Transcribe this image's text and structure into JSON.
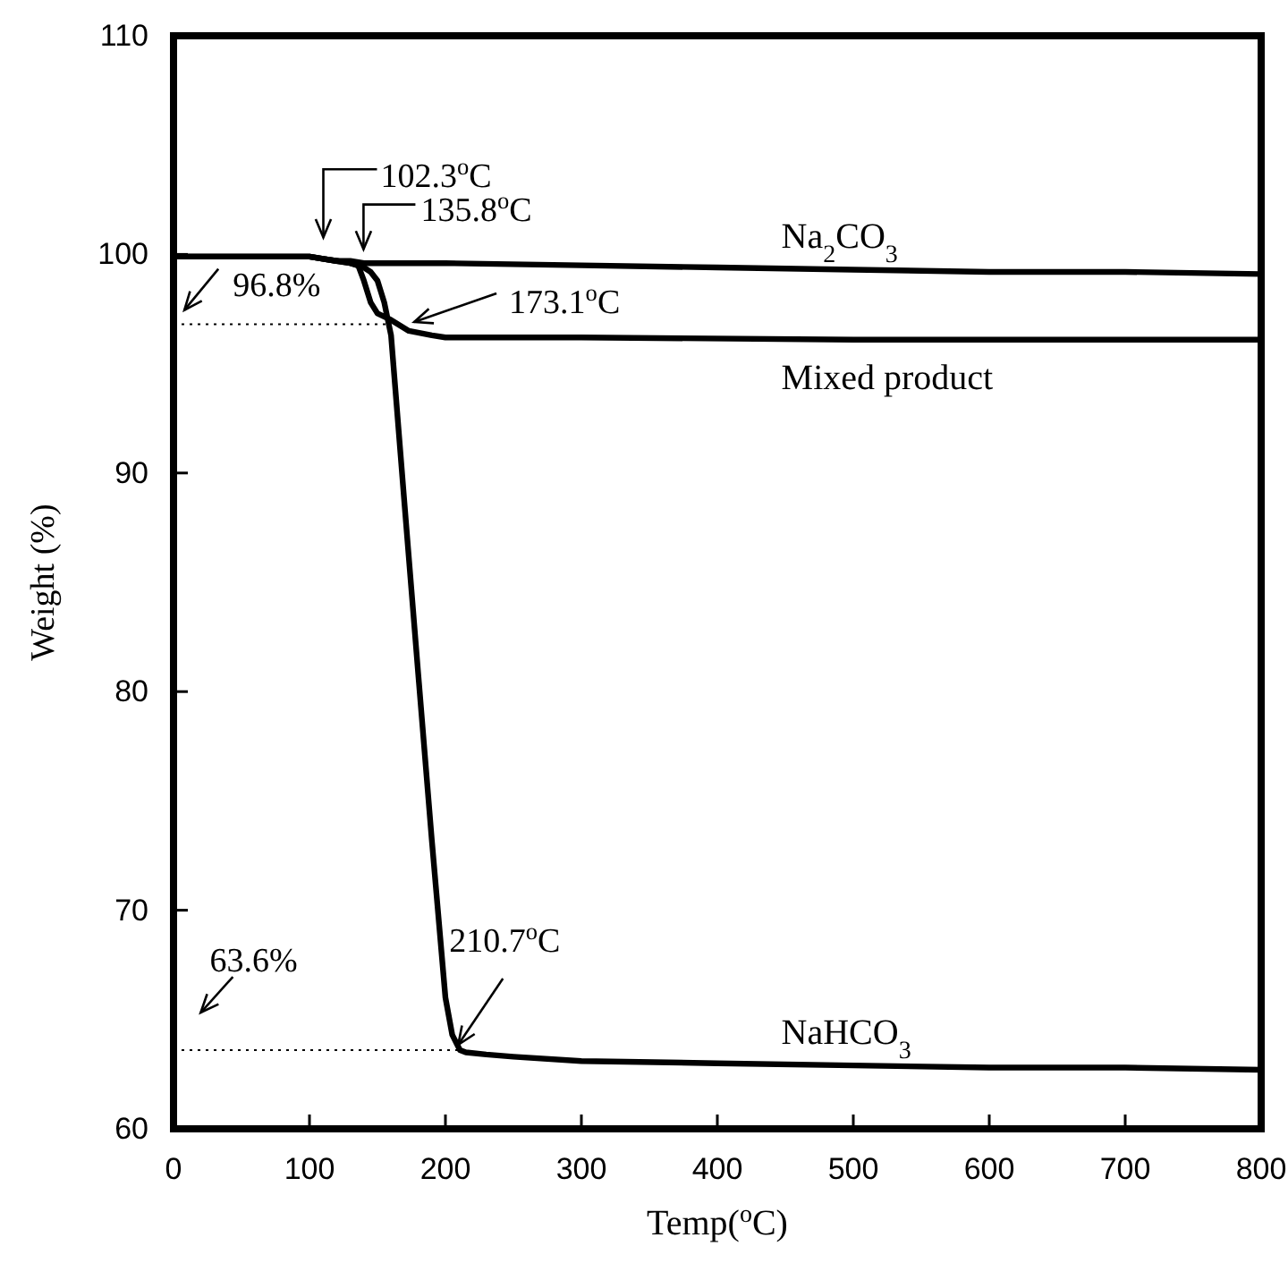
{
  "chart_data": {
    "type": "line",
    "xlabel": "Temp($^{o}$C)",
    "ylabel": "Weight (%)",
    "xlim": [
      0,
      800
    ],
    "xticks": [
      0,
      100,
      200,
      300,
      400,
      500,
      600,
      700,
      800
    ],
    "ylim": [
      60,
      110
    ],
    "yticks": [
      60,
      70,
      80,
      90,
      100,
      110
    ],
    "grid": false,
    "legend": false,
    "marker": "none",
    "line_style": "solid",
    "series": [
      {
        "name": "Na$_{2}$CO$_{3}$",
        "color": "#000000",
        "x": [
          0,
          50,
          100,
          110,
          120,
          130,
          140,
          150,
          200,
          300,
          400,
          500,
          600,
          700,
          800
        ],
        "values": [
          99.9,
          99.9,
          99.9,
          99.8,
          99.7,
          99.7,
          99.6,
          99.6,
          99.6,
          99.5,
          99.4,
          99.3,
          99.2,
          99.2,
          99.1
        ]
      },
      {
        "name": "Mixed product",
        "color": "#000000",
        "x": [
          0,
          100,
          110,
          120,
          130,
          135.8,
          140,
          145,
          150,
          160,
          173.1,
          190,
          200,
          300,
          500,
          800
        ],
        "values": [
          99.9,
          99.9,
          99.8,
          99.7,
          99.6,
          99.5,
          98.8,
          97.8,
          97.3,
          97.0,
          96.5,
          96.3,
          96.2,
          96.2,
          96.1,
          96.1
        ]
      },
      {
        "name": "NaHCO$_{3}$",
        "color": "#000000",
        "x": [
          0,
          100,
          110,
          120,
          130,
          140,
          145,
          150,
          155,
          160,
          170,
          180,
          190,
          200,
          205,
          210.7,
          215,
          230,
          250,
          300,
          400,
          500,
          600,
          700,
          800
        ],
        "values": [
          99.9,
          99.9,
          99.8,
          99.7,
          99.6,
          99.4,
          99.2,
          98.8,
          97.8,
          96.3,
          88.5,
          80.8,
          73.2,
          66.0,
          64.3,
          63.6,
          63.5,
          63.4,
          63.3,
          63.1,
          63.0,
          62.9,
          62.8,
          62.8,
          62.7
        ]
      }
    ],
    "ref_lines": [
      {
        "axis": "y",
        "value": 96.8,
        "line_style": "dotted",
        "color": "#000000"
      },
      {
        "axis": "y",
        "value": 63.6,
        "line_style": "dotted",
        "color": "#000000"
      }
    ],
    "annotations": [
      {
        "text": "96.8%",
        "x": 8,
        "y": 96.8
      },
      {
        "text": "63.6%",
        "x": 20,
        "y": 63.6
      },
      {
        "text": "102.3$^{o}$C",
        "x": 102.3,
        "y": 99.8
      },
      {
        "text": "135.8$^{o}$C",
        "x": 135.8,
        "y": 99.5
      },
      {
        "text": "173.1$^{o}$C",
        "x": 173.1,
        "y": 96.5
      },
      {
        "text": "210.7$^{o}$C",
        "x": 210.7,
        "y": 63.6
      }
    ]
  }
}
